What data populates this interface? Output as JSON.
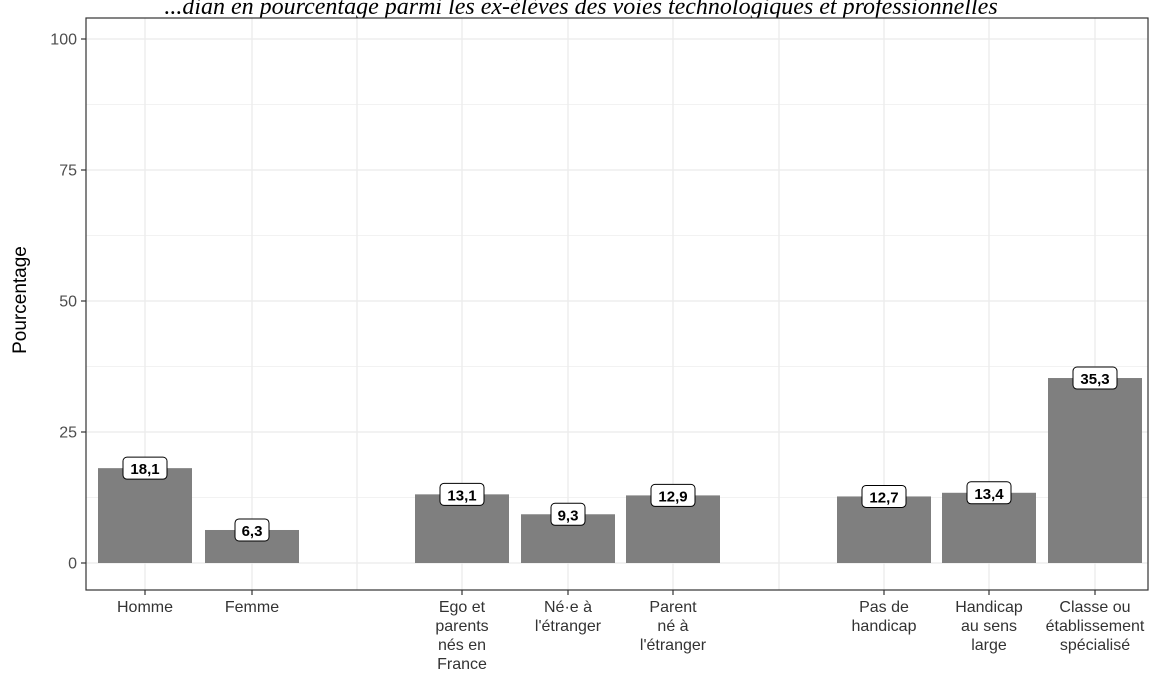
{
  "chart_data": {
    "type": "bar",
    "title": "...dian en pourcentage parmi les ex-élèves des voies technologiques et professionnelles",
    "ylabel": "Pourcentage",
    "xlabel": "",
    "ylim": [
      0,
      100
    ],
    "yticks": [
      0,
      25,
      50,
      75,
      100
    ],
    "grid": true,
    "legend": "none",
    "bar_color": "#7f7f7f",
    "groups": [
      {
        "categories": [
          {
            "label_lines": [
              "Homme"
            ],
            "value": 18.1,
            "value_label": "18,1"
          },
          {
            "label_lines": [
              "Femme"
            ],
            "value": 6.3,
            "value_label": "6,3"
          }
        ]
      },
      {
        "categories": [
          {
            "label_lines": [
              "Ego et",
              "parents",
              "nés en",
              "France"
            ],
            "value": 13.1,
            "value_label": "13,1"
          },
          {
            "label_lines": [
              "Né·e à",
              "l'étranger"
            ],
            "value": 9.3,
            "value_label": "9,3"
          },
          {
            "label_lines": [
              "Parent",
              "né à",
              "l'étranger"
            ],
            "value": 12.9,
            "value_label": "12,9"
          }
        ]
      },
      {
        "categories": [
          {
            "label_lines": [
              "Pas de",
              "handicap"
            ],
            "value": 12.7,
            "value_label": "12,7"
          },
          {
            "label_lines": [
              "Handicap",
              "au sens",
              "large"
            ],
            "value": 13.4,
            "value_label": "13,4"
          },
          {
            "label_lines": [
              "Classe ou",
              "établissement",
              "spécialisé"
            ],
            "value": 35.3,
            "value_label": "35,3"
          }
        ]
      }
    ]
  }
}
